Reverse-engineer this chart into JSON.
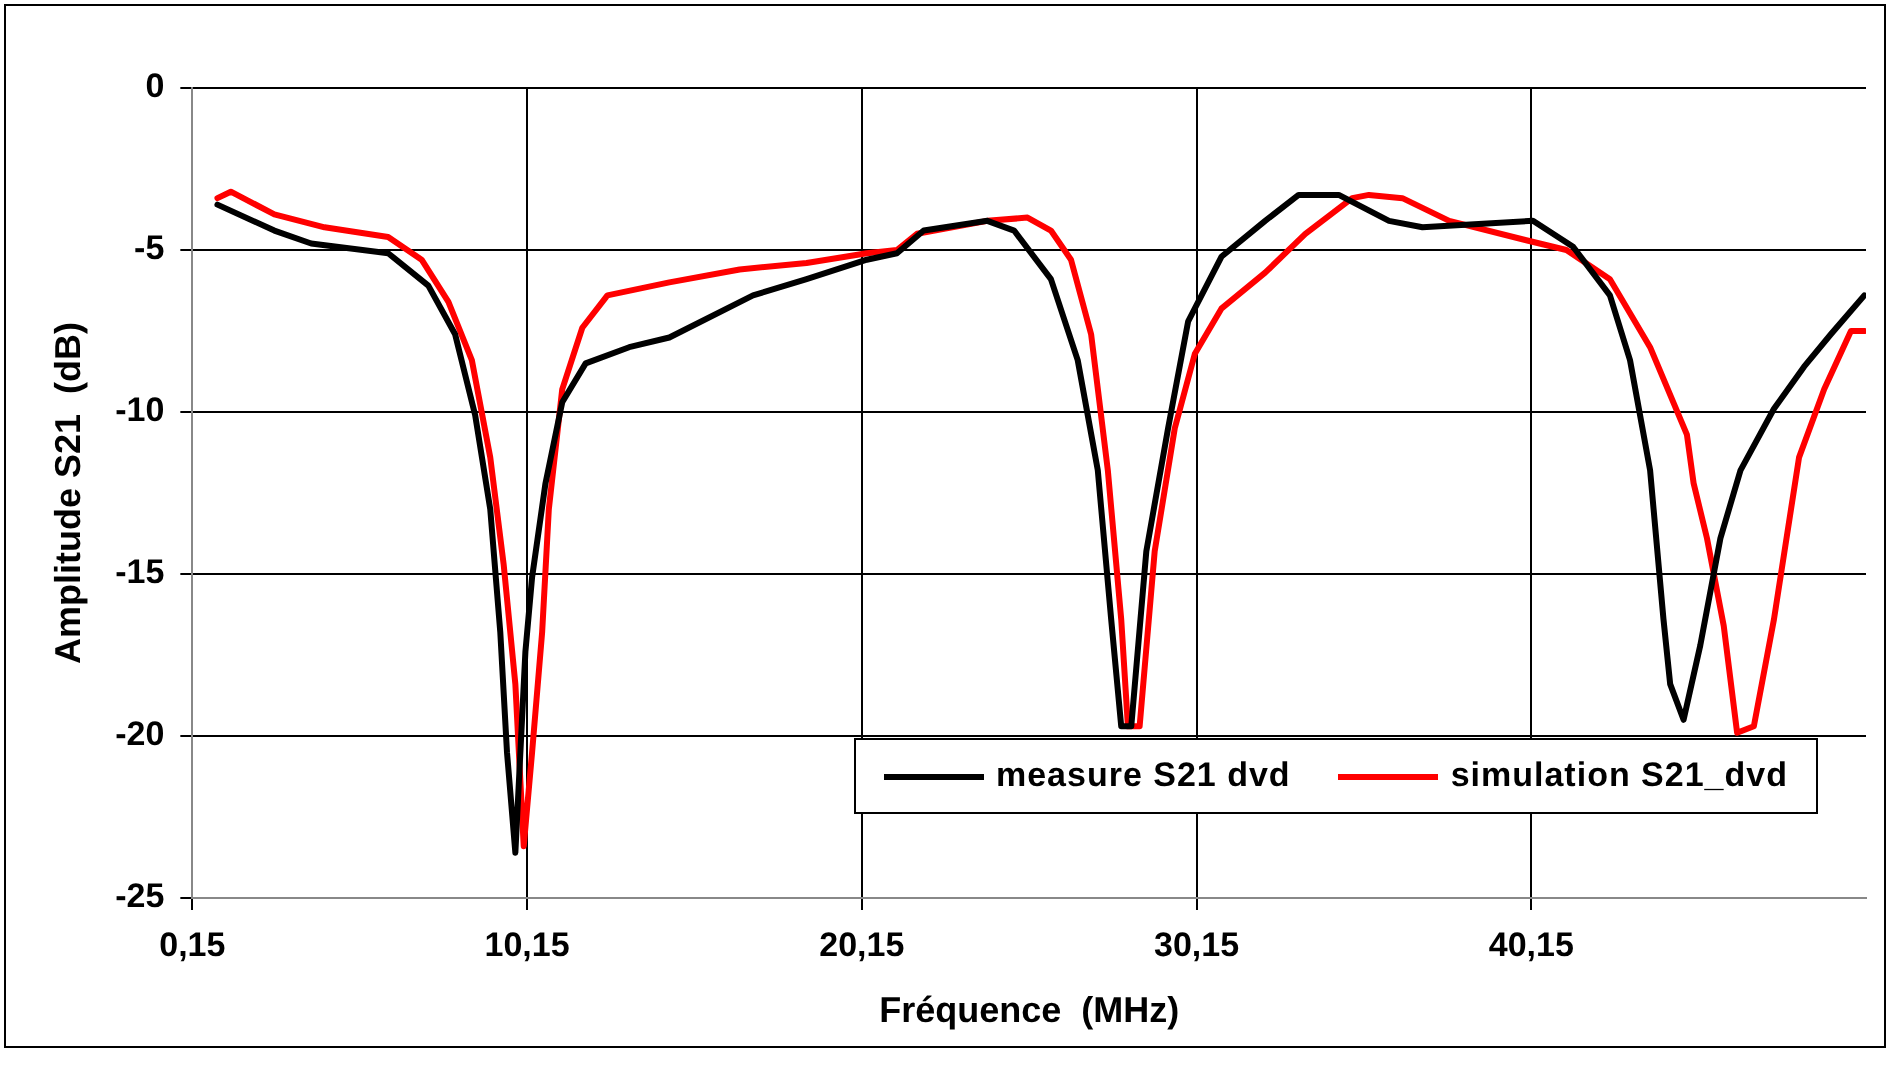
{
  "chart_data": {
    "type": "line",
    "xlabel": "Fréquence  (MHz)",
    "ylabel": "Amplitude S21  (dB)",
    "xlim": [
      0.15,
      50.15
    ],
    "ylim": [
      -25,
      0
    ],
    "xticks": [
      {
        "value": 0.15,
        "label": "0,15"
      },
      {
        "value": 10.15,
        "label": "10,15"
      },
      {
        "value": 20.15,
        "label": "20,15"
      },
      {
        "value": 30.15,
        "label": "30,15"
      },
      {
        "value": 40.15,
        "label": "40,15"
      }
    ],
    "yticks": [
      -25,
      -20,
      -15,
      -10,
      -5,
      0
    ],
    "grid": true,
    "legend": "bottom right",
    "marker": "none",
    "line_style": "solid",
    "series": [
      {
        "name": "measure S21 dvd",
        "color": "#000000",
        "x": [
          0.9,
          2.6,
          3.7,
          6.0,
          7.2,
          8.0,
          8.6,
          9.05,
          9.35,
          9.55,
          9.8,
          10.1,
          10.3,
          10.7,
          11.2,
          11.9,
          13.2,
          14.4,
          16.9,
          18.5,
          20.3,
          21.2,
          22.0,
          23.9,
          24.7,
          25.8,
          26.6,
          27.2,
          27.6,
          27.9,
          28.2,
          28.65,
          29.3,
          29.9,
          30.9,
          32.2,
          33.2,
          34.4,
          35.9,
          36.9,
          40.2,
          41.4,
          42.5,
          43.1,
          43.7,
          44.1,
          44.3,
          44.7,
          45.2,
          45.8,
          46.4,
          47.4,
          48.3,
          49.1,
          50.1
        ],
        "values": [
          -3.6,
          -4.4,
          -4.8,
          -5.1,
          -6.1,
          -7.6,
          -10.1,
          -13,
          -16.8,
          -20.5,
          -23.6,
          -17.4,
          -15.1,
          -12.2,
          -9.7,
          -8.5,
          -8.0,
          -7.7,
          -6.4,
          -5.9,
          -5.3,
          -5.1,
          -4.4,
          -4.1,
          -4.4,
          -5.9,
          -8.4,
          -11.8,
          -16.4,
          -19.7,
          -19.7,
          -14.3,
          -10.5,
          -7.2,
          -5.2,
          -4.1,
          -3.3,
          -3.3,
          -4.1,
          -4.3,
          -4.1,
          -4.9,
          -6.4,
          -8.4,
          -11.8,
          -16.4,
          -18.4,
          -19.5,
          -17.2,
          -13.9,
          -11.8,
          -9.9,
          -8.6,
          -7.6,
          -6.4
        ]
      },
      {
        "name": "simulation S21_dvd",
        "color": "#ff0000",
        "x": [
          0.9,
          1.3,
          2.6,
          4.1,
          6.0,
          7.0,
          7.8,
          8.5,
          9.05,
          9.45,
          9.8,
          10.05,
          10.3,
          10.6,
          10.8,
          11.2,
          11.8,
          12.55,
          14.4,
          16.5,
          18.5,
          20.3,
          21.2,
          21.8,
          23.9,
          25.1,
          25.8,
          26.4,
          27.0,
          27.5,
          27.9,
          28.1,
          28.45,
          28.9,
          29.5,
          30.1,
          30.9,
          32.2,
          33.4,
          34.8,
          35.3,
          36.3,
          37.7,
          40.0,
          41.2,
          42.5,
          43.7,
          44.8,
          45.0,
          45.4,
          45.9,
          46.3,
          46.8,
          47.4,
          48.15,
          48.9,
          49.7,
          50.1
        ],
        "values": [
          -3.4,
          -3.2,
          -3.9,
          -4.3,
          -4.6,
          -5.3,
          -6.6,
          -8.4,
          -11.4,
          -14.7,
          -18.4,
          -23.4,
          -20.5,
          -16.8,
          -13,
          -9.3,
          -7.4,
          -6.4,
          -6.0,
          -5.6,
          -5.4,
          -5.1,
          -5.0,
          -4.5,
          -4.1,
          -4.0,
          -4.4,
          -5.3,
          -7.6,
          -11.8,
          -16.4,
          -19.7,
          -19.7,
          -14.3,
          -10.5,
          -8.2,
          -6.8,
          -5.7,
          -4.5,
          -3.4,
          -3.3,
          -3.4,
          -4.1,
          -4.7,
          -5.0,
          -5.9,
          -8.0,
          -10.7,
          -12.2,
          -13.9,
          -16.6,
          -19.9,
          -19.7,
          -16.4,
          -11.4,
          -9.3,
          -7.5,
          -7.5
        ]
      }
    ]
  }
}
